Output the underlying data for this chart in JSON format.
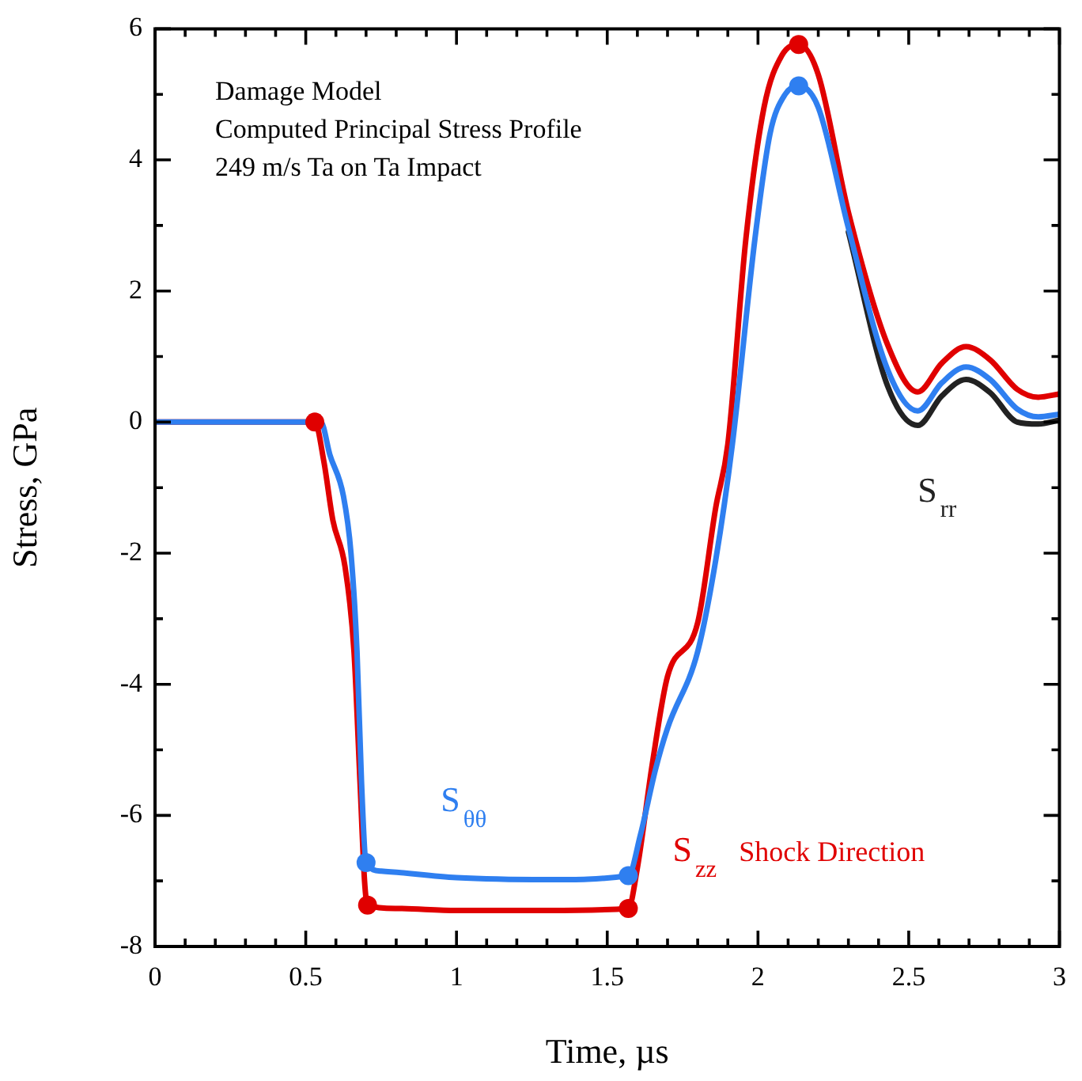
{
  "chart_data": {
    "type": "line",
    "xlabel": "Time, µs",
    "ylabel": "Stress, GPa",
    "annotations": [
      "Damage Model",
      "Computed Principal Stress Profile",
      "249 m/s Ta on Ta Impact",
      "Shock Direction"
    ],
    "xlim": [
      0,
      3
    ],
    "ylim": [
      -8,
      6
    ],
    "xticks": [
      0,
      {
        "value": 0.1,
        "label": null
      },
      {
        "value": 0.2,
        "label": null
      },
      {
        "value": 0.3,
        "label": null
      },
      {
        "value": 0.4,
        "label": null
      },
      0.5,
      {
        "value": 0.6,
        "label": null
      },
      {
        "value": 0.7,
        "label": null
      },
      {
        "value": 0.8,
        "label": null
      },
      {
        "value": 0.9,
        "label": null
      },
      1,
      {
        "value": 1.1,
        "label": null
      },
      {
        "value": 1.2,
        "label": null
      },
      {
        "value": 1.3,
        "label": null
      },
      {
        "value": 1.4,
        "label": null
      },
      1.5,
      {
        "value": 1.6,
        "label": null
      },
      {
        "value": 1.7,
        "label": null
      },
      {
        "value": 1.8,
        "label": null
      },
      {
        "value": 1.9,
        "label": null
      },
      2,
      {
        "value": 2.1,
        "label": null
      },
      {
        "value": 2.2,
        "label": null
      },
      {
        "value": 2.3,
        "label": null
      },
      {
        "value": 2.4,
        "label": null
      },
      2.5,
      {
        "value": 2.6,
        "label": null
      },
      {
        "value": 2.7,
        "label": null
      },
      {
        "value": 2.8,
        "label": null
      },
      {
        "value": 2.9,
        "label": null
      },
      3
    ],
    "yticks": [
      -8,
      {
        "value": -7,
        "label": null
      },
      -6,
      {
        "value": -5,
        "label": null
      },
      -4,
      {
        "value": -3,
        "label": null
      },
      -2,
      {
        "value": -1,
        "label": null
      },
      0,
      {
        "value": 1,
        "label": null
      },
      2,
      {
        "value": 3,
        "label": null
      },
      4,
      {
        "value": 5,
        "label": null
      },
      6
    ],
    "grid": false,
    "legend": false,
    "marker": "none",
    "line_style": "solid",
    "series": [
      {
        "name": "S$_{rr}$",
        "color": "#222222",
        "x": [
          2.3,
          2.43,
          2.53,
          2.61,
          2.69,
          2.77,
          2.86,
          2.93,
          3.0
        ],
        "values": [
          2.9,
          0.55,
          -0.05,
          0.4,
          0.65,
          0.45,
          0.0,
          -0.03,
          0.03
        ]
      },
      {
        "name": "S$_{zz}$",
        "color": "#e00000",
        "x": [
          0,
          0.53,
          0.56,
          0.59,
          0.63,
          0.66,
          0.68,
          0.695,
          0.705,
          0.8,
          1.0,
          1.3,
          1.57,
          1.6,
          1.65,
          1.7,
          1.8,
          1.86,
          1.9,
          1.96,
          2.02,
          2.08,
          2.135,
          2.2,
          2.3,
          2.43,
          2.53,
          2.61,
          2.69,
          2.77,
          2.86,
          2.93,
          3.0
        ],
        "values": [
          0,
          0,
          -0.6,
          -1.5,
          -2.2,
          -3.5,
          -5.5,
          -7.0,
          -7.37,
          -7.42,
          -7.45,
          -7.45,
          -7.42,
          -6.8,
          -5.2,
          -3.88,
          -3.06,
          -1.3,
          -0.34,
          2.8,
          4.8,
          5.6,
          5.76,
          5.3,
          3.2,
          1.18,
          0.46,
          0.9,
          1.15,
          0.95,
          0.5,
          0.38,
          0.43
        ]
      },
      {
        "name": "S$_{θθ}$",
        "color": "#2f7ff0",
        "x": [
          0,
          0.55,
          0.58,
          0.625,
          0.65,
          0.67,
          0.685,
          0.7,
          0.75,
          1.0,
          1.3,
          1.57,
          1.61,
          1.66,
          1.7,
          1.8,
          1.86,
          1.915,
          1.99,
          2.04,
          2.09,
          2.135,
          2.2,
          2.3,
          2.43,
          2.53,
          2.61,
          2.69,
          2.77,
          2.86,
          2.93,
          3.0
        ],
        "values": [
          0,
          0,
          -0.5,
          -1.13,
          -2.0,
          -3.5,
          -5.5,
          -6.72,
          -6.85,
          -6.95,
          -6.98,
          -6.92,
          -6.3,
          -5.3,
          -4.67,
          -3.5,
          -2.1,
          -0.34,
          2.8,
          4.4,
          5.0,
          5.13,
          4.8,
          2.96,
          0.8,
          0.17,
          0.6,
          0.84,
          0.65,
          0.2,
          0.08,
          0.12
        ]
      },
      {
        "type": "scatter",
        "marker": "circle",
        "color": "#e00000",
        "x": [
          0.53,
          0.705,
          1.57,
          2.135
        ],
        "values": [
          0,
          -7.37,
          -7.42,
          5.76
        ]
      },
      {
        "type": "scatter",
        "marker": "circle",
        "color": "#2f7ff0",
        "x": [
          0.7,
          1.57,
          2.135
        ],
        "values": [
          -6.72,
          -6.92,
          5.13
        ]
      }
    ]
  }
}
